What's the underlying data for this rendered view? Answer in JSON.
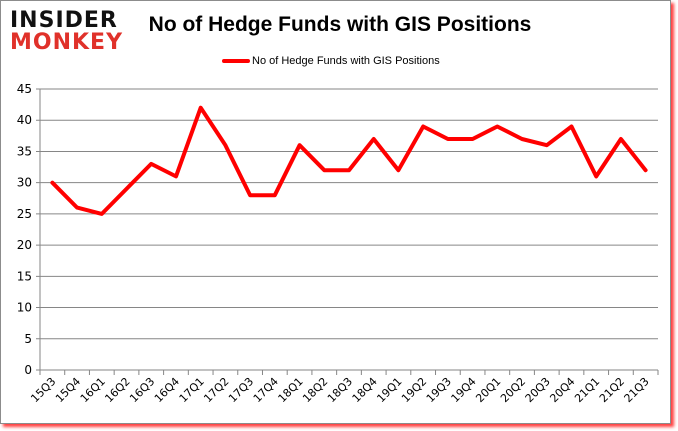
{
  "logo": {
    "line1": "INSIDER",
    "line2": "MONKEY"
  },
  "colors": {
    "series": "#ff0000",
    "grid": "#868686",
    "logo_red": "#e0312a"
  },
  "chart_data": {
    "type": "line",
    "title": "No of Hedge Funds with GIS Positions",
    "xlabel": "",
    "ylabel": "",
    "ylim": [
      0,
      45
    ],
    "yticks": [
      0,
      5,
      10,
      15,
      20,
      25,
      30,
      35,
      40,
      45
    ],
    "grid": true,
    "legend_position": "top",
    "categories": [
      "15Q3",
      "15Q4",
      "16Q1",
      "16Q2",
      "16Q3",
      "16Q4",
      "17Q1",
      "17Q2",
      "17Q3",
      "17Q4",
      "18Q1",
      "18Q2",
      "18Q3",
      "18Q4",
      "19Q1",
      "19Q2",
      "19Q3",
      "19Q4",
      "20Q1",
      "20Q2",
      "20Q3",
      "20Q4",
      "21Q1",
      "21Q2",
      "21Q3"
    ],
    "series": [
      {
        "name": "No of Hedge Funds with GIS Positions",
        "values": [
          30,
          26,
          25,
          29,
          33,
          31,
          42,
          36,
          28,
          28,
          36,
          32,
          32,
          37,
          32,
          39,
          37,
          37,
          39,
          37,
          36,
          39,
          31,
          37,
          32
        ]
      }
    ]
  }
}
